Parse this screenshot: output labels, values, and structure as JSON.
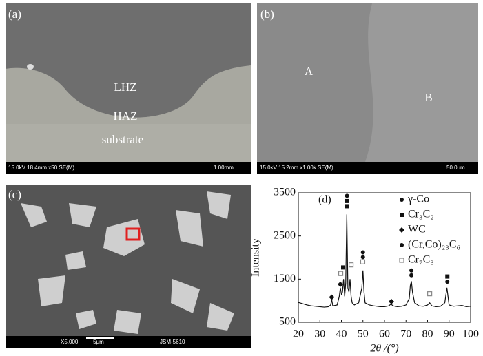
{
  "panels": {
    "a": {
      "label": "(a)",
      "zones": [
        "LHZ",
        "HAZ",
        "substrate"
      ],
      "info": "15.0kV 18.4mm x50 SE(M)",
      "scale": "1.00mm"
    },
    "b": {
      "label": "(b)",
      "regions": [
        "A",
        "B"
      ],
      "info": "15.0kV 15.2mm x1.00k SE(M)",
      "scale": "50.0um"
    },
    "c": {
      "label": "(c)",
      "info": "X5,000",
      "scale": "5μm",
      "instrument": "JSM-5610"
    },
    "d": {
      "label": "(d)"
    }
  },
  "chart_data": {
    "type": "line",
    "xlabel": "2θ /(°)",
    "ylabel": "Intensity",
    "xlim": [
      20,
      100
    ],
    "xticks": [
      20,
      30,
      40,
      50,
      60,
      70,
      80,
      90,
      100
    ],
    "ylim": [
      500,
      3500
    ],
    "yticks": [
      500,
      1500,
      2500,
      3500
    ],
    "color": "#111111",
    "x": [
      20,
      22,
      24,
      26,
      28,
      30,
      32,
      34,
      35,
      35.5,
      36,
      38,
      39,
      39.5,
      40,
      40.5,
      41,
      41.5,
      42,
      42.5,
      43,
      43.5,
      44,
      44.5,
      45,
      46,
      48,
      49.5,
      50,
      50.5,
      51,
      53,
      55,
      58,
      60,
      62,
      63,
      64,
      66,
      68,
      70,
      71.5,
      72,
      72.5,
      73,
      74,
      76,
      78,
      80,
      81,
      82,
      84,
      86,
      88,
      89,
      89.5,
      90,
      92,
      94,
      96,
      98,
      100
    ],
    "values": [
      960,
      930,
      900,
      880,
      870,
      860,
      850,
      860,
      900,
      1020,
      880,
      900,
      1100,
      1300,
      1150,
      1200,
      1500,
      1100,
      1400,
      3000,
      1300,
      1200,
      1500,
      1100,
      950,
      900,
      950,
      1300,
      1700,
      1200,
      950,
      900,
      880,
      860,
      860,
      880,
      920,
      880,
      860,
      870,
      900,
      1050,
      1350,
      1450,
      1200,
      950,
      880,
      870,
      900,
      950,
      880,
      860,
      870,
      950,
      1300,
      1100,
      900,
      870,
      880,
      890,
      860,
      870
    ],
    "series": [
      {
        "name": "γ-Co",
        "marker": "circle",
        "color": "#111111",
        "x": [
          42.6,
          50,
          72.5
        ],
        "values": [
          3430,
          2120,
          1700
        ]
      },
      {
        "name": "Cr₃C₂",
        "marker": "square",
        "color": "#111111",
        "x": [
          40.8,
          42.6,
          42.6,
          89.2
        ],
        "values": [
          1770,
          3310,
          3190,
          1560
        ]
      },
      {
        "name": "WC",
        "marker": "diamond",
        "color": "#111111",
        "x": [
          35.5,
          39.5,
          63.2
        ],
        "values": [
          1080,
          1380,
          980
        ]
      },
      {
        "name": "(Cr,Co)₂₃C₆",
        "marker": "circle",
        "color": "#111111",
        "x": [
          50,
          72.5,
          89.2
        ],
        "values": [
          2010,
          1590,
          1440
        ]
      },
      {
        "name": "Cr₇C₃",
        "marker": "open-square",
        "color": "#888888",
        "x": [
          39.7,
          44.5,
          49.9,
          81
        ],
        "values": [
          1630,
          1830,
          1900,
          1160
        ]
      }
    ]
  }
}
